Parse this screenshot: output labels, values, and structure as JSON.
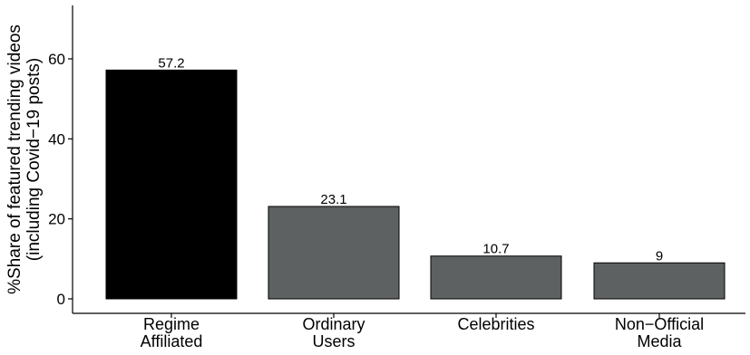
{
  "chart_data": {
    "type": "bar",
    "categories": [
      [
        "Regime",
        "Affiliated"
      ],
      [
        "Ordinary",
        "Users"
      ],
      [
        "Celebrities"
      ],
      [
        "Non−Official",
        "Media"
      ]
    ],
    "values": [
      57.2,
      23.1,
      10.7,
      9
    ],
    "value_labels": [
      "57.2",
      "23.1",
      "10.7",
      "9"
    ],
    "bar_colors": [
      "#000000",
      "#5e6162",
      "#5e6162",
      "#5e6162"
    ],
    "ylabel": [
      "%Share of featured trending videos",
      "(including Covid−19 posts)"
    ],
    "xlabel": "",
    "ylim": [
      0,
      72
    ],
    "yticks": [
      0,
      20,
      40,
      60
    ],
    "grid": false,
    "legend": "none"
  }
}
